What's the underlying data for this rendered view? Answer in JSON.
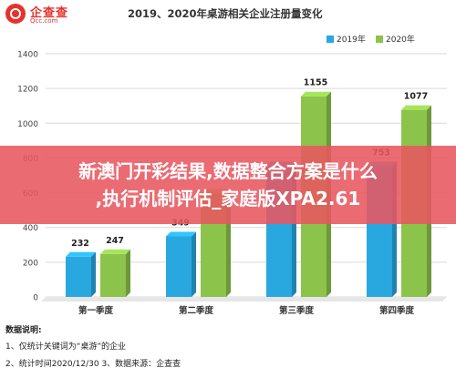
{
  "brand": {
    "name": "企查查",
    "domain": "Qcc.com",
    "logo_color": "#e6322b"
  },
  "chart_data": {
    "type": "bar",
    "title": "2019、2020年桌游相关企业注册量变化",
    "categories": [
      "第一季度",
      "第二季度",
      "第三季度",
      "第四季度"
    ],
    "series": [
      {
        "name": "2019年",
        "color": "#29a8e0",
        "values": [
          232,
          349,
          753,
          753
        ]
      },
      {
        "name": "2020年",
        "color": "#8cc34b",
        "values": [
          247,
          595,
          1155,
          1077
        ]
      }
    ],
    "data_labels": [
      [
        "232",
        "349",
        "",
        "753"
      ],
      [
        "247",
        "",
        "1155",
        "1077"
      ]
    ],
    "yticks": [
      0,
      200,
      400,
      600,
      800,
      1000,
      1200,
      1400
    ],
    "ylim": [
      0,
      1400
    ],
    "legend_position": "top-right",
    "grid": true
  },
  "notes": {
    "title": "数据说明:",
    "lines": [
      "1、仅统计关键词为“桌游”的企业",
      "2、统计时间2020/12/30    3、数据来源：企查查"
    ]
  },
  "overlay": {
    "line1": "新澳门开彩结果,数据整合方案是什么",
    "line2": ",执行机制评估_家庭版XPA2.61"
  }
}
